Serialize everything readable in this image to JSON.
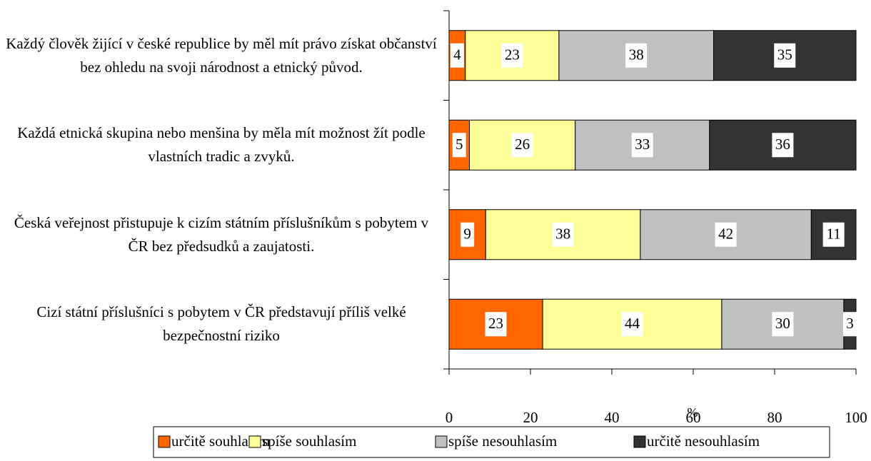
{
  "chart_data": {
    "type": "stacked-bar-horizontal",
    "categories": [
      "Každý člověk žijící v české republice by měl mít právo získat občanství bez ohledu na svoji národnost a etnický původ.",
      "Každá etnická skupina nebo menšina by měla mít možnost žít podle vlastních tradic a zvyků.",
      "Česká veřejnost přistupuje k cizím státním příslušníkům s pobytem v ČR bez předsudků a zaujatosti.",
      "Cizí státní příslušníci s pobytem v ČR představují příliš velké bezpečnostní riziko"
    ],
    "series": [
      {
        "name": "určitě souhlasím",
        "color": "#ff6600",
        "values": [
          4,
          5,
          9,
          23
        ]
      },
      {
        "name": "spíše souhlasím",
        "color": "#ffff99",
        "values": [
          23,
          26,
          38,
          44
        ]
      },
      {
        "name": "spíše nesouhlasím",
        "color": "#c0c0c0",
        "values": [
          38,
          33,
          42,
          30
        ]
      },
      {
        "name": "určitě nesouhlasím",
        "color": "#333333",
        "values": [
          35,
          36,
          11,
          3
        ]
      }
    ],
    "xlabel": "%",
    "xlim": [
      0,
      100
    ],
    "xticks": [
      0,
      20,
      40,
      60,
      80,
      100
    ],
    "legend": "bottom"
  }
}
